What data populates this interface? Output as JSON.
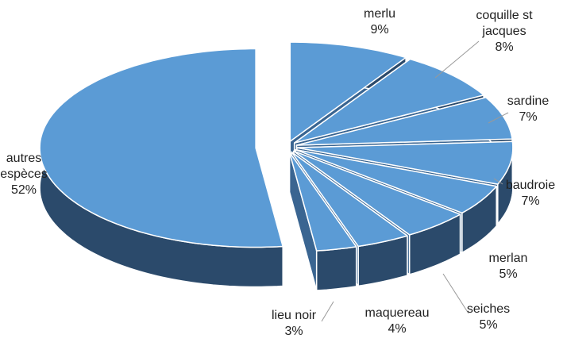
{
  "chart_data": {
    "type": "pie",
    "categories": [
      "merlu",
      "coquille st jacques",
      "sardine",
      "baudroie",
      "merlan",
      "seiches",
      "maquereau",
      "lieu noir",
      "autres espèces"
    ],
    "values": [
      9,
      8,
      7,
      7,
      5,
      5,
      4,
      3,
      52
    ],
    "value_labels": [
      "9%",
      "8%",
      "7%",
      "7%",
      "5%",
      "5%",
      "4%",
      "3%",
      "52%"
    ],
    "color": "#5b9bd5"
  }
}
